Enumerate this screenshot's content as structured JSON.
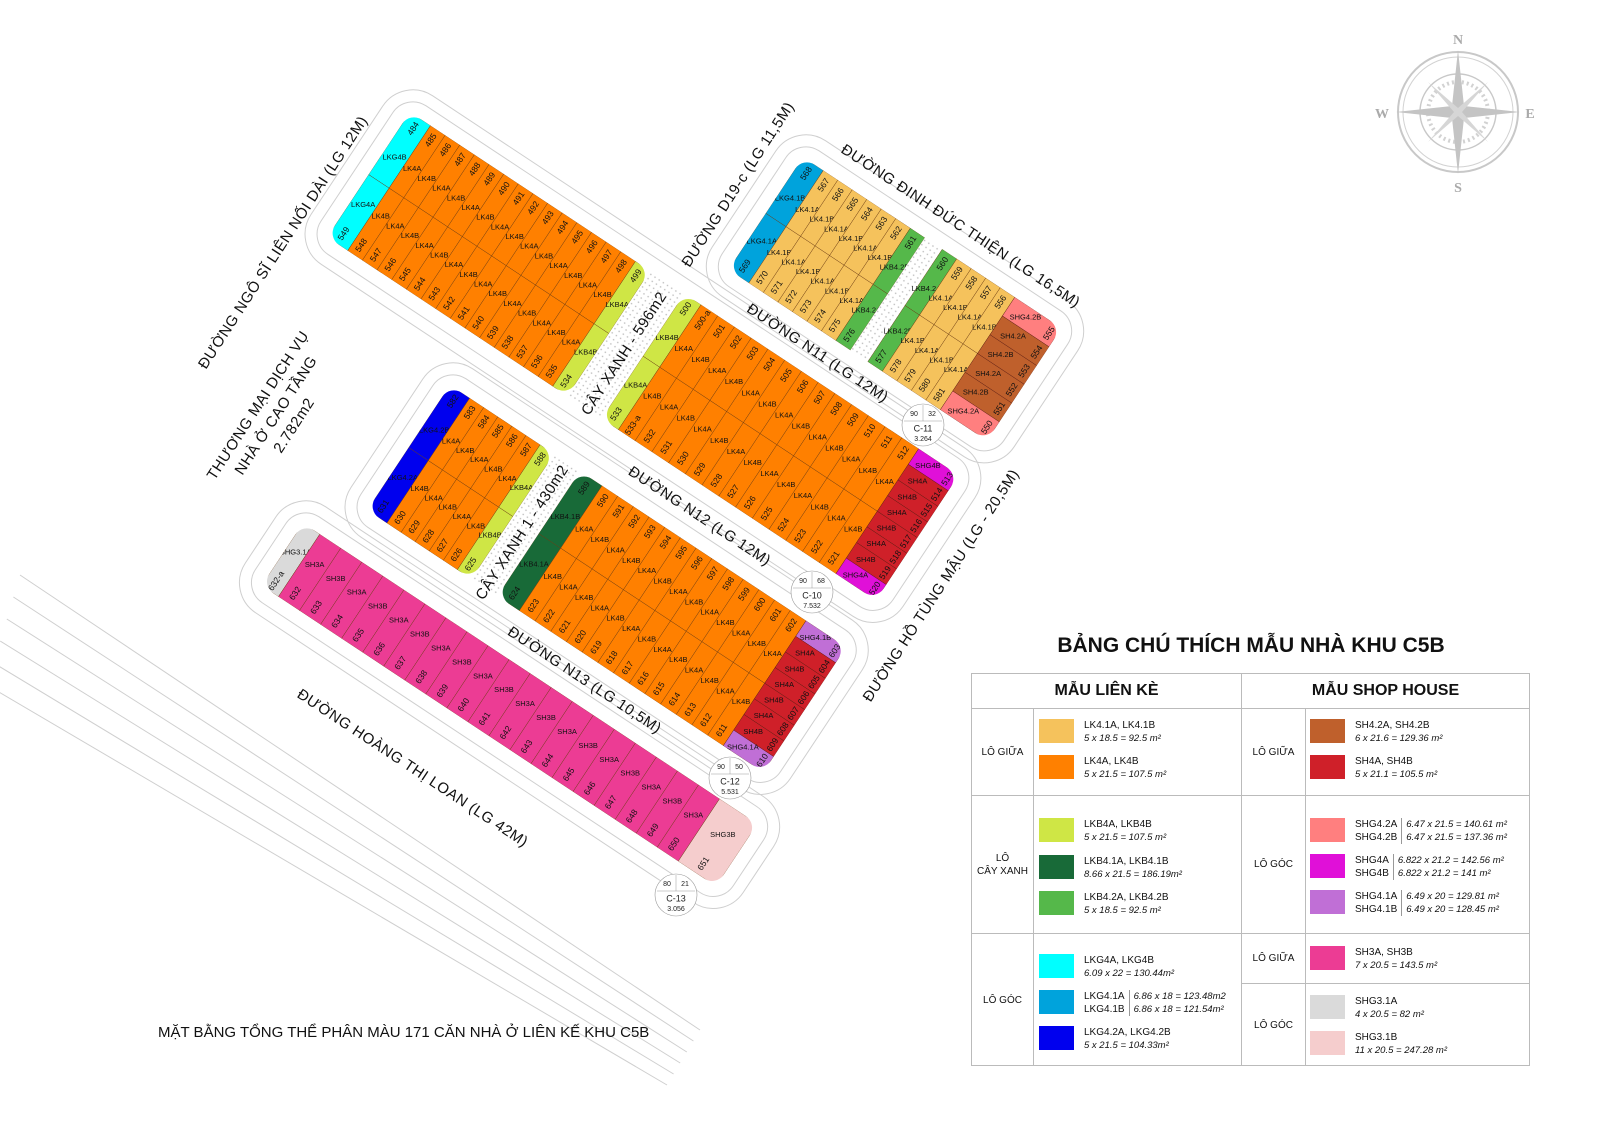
{
  "map": {
    "streets": {
      "ngo_si_lien": "ĐƯỜNG NGÔ SĨ LIÊN NỐI DÀI (LG 12M)",
      "d19c": "ĐƯỜNG D19-c (LG 11,5M)",
      "dinh_duc_thien": "ĐƯỜNG ĐINH ĐỨC THIỆN (LG 16,5M)",
      "n11": "ĐƯỜNG N11 (LG 12M)",
      "n12": "ĐƯỜNG N12 (LG 12M)",
      "n13": "ĐƯỜNG N13 (LG 10,5M)",
      "ho_tung_mau": "ĐƯỜNG HỒ TÙNG MẬU (LG - 20,5M)",
      "hoang_thi_loan": "ĐƯỜNG  HOÀNG THỊ LOAN (LG 42M)"
    },
    "areas": {
      "commercial_line1": "THƯƠNG MẠI DỊCH VỤ",
      "commercial_line2": "NHÀ Ở CAO TẦNG",
      "commercial_line3": "2.782m2",
      "green_1": "CÂY XANH - 596m2",
      "green_2": "CÂY XANH 1 - 430m2"
    },
    "compass": {
      "n": "N",
      "s": "S",
      "e": "E",
      "w": "W"
    },
    "caption": "MẶT BẰNG TỔNG THỂ PHÂN MÀU 171 CĂN NHÀ Ở LIÊN KẾ KHU C5B",
    "markers": [
      {
        "id": "C-10",
        "a": "90",
        "b": "68",
        "area": "7.532"
      },
      {
        "id": "C-11",
        "a": "90",
        "b": "32",
        "area": "3.264"
      },
      {
        "id": "C-12",
        "a": "90",
        "b": "50",
        "area": "5.531"
      },
      {
        "id": "C-13",
        "a": "80",
        "b": "21",
        "area": "3.056"
      }
    ],
    "blocks": {
      "A": {
        "top": [
          [
            "484",
            "LKG4B"
          ],
          [
            "485",
            "LK4A"
          ],
          [
            "486",
            "LK4B"
          ],
          [
            "487",
            "LK4A"
          ],
          [
            "488",
            "LK4B"
          ],
          [
            "489",
            "LK4A"
          ],
          [
            "490",
            "LK4B"
          ],
          [
            "491",
            "LK4A"
          ],
          [
            "492",
            "LK4B"
          ],
          [
            "493",
            "LK4A"
          ],
          [
            "494",
            "LK4B"
          ],
          [
            "495",
            "LK4A"
          ],
          [
            "496",
            "LK4B"
          ],
          [
            "497",
            "LK4A"
          ],
          [
            "498",
            "LK4B"
          ],
          [
            "499",
            "LKB4A"
          ]
        ],
        "bottom": [
          [
            "549",
            "LKG4A"
          ],
          [
            "548",
            "LK4B"
          ],
          [
            "547",
            "LK4A"
          ],
          [
            "546",
            "LK4B"
          ],
          [
            "545",
            "LK4A"
          ],
          [
            "544",
            "LK4B"
          ],
          [
            "543",
            "LK4A"
          ],
          [
            "542",
            "LK4B"
          ],
          [
            "541",
            "LK4A"
          ],
          [
            "540",
            "LK4B"
          ],
          [
            "539",
            "LK4A"
          ],
          [
            "538",
            "LK4B"
          ],
          [
            "537",
            "LK4A"
          ],
          [
            "536",
            "LK4B"
          ],
          [
            "535",
            "LK4A"
          ],
          [
            "534",
            "LKB4B"
          ]
        ],
        "shop": []
      },
      "C": {
        "top": [
          [
            "500",
            "LKB4B"
          ],
          [
            "500-a",
            "LK4A"
          ],
          [
            "501",
            "LK4B"
          ],
          [
            "502",
            "LK4A"
          ],
          [
            "503",
            "LK4B"
          ],
          [
            "504",
            "LK4A"
          ],
          [
            "505",
            "LK4B"
          ],
          [
            "506",
            "LK4A"
          ],
          [
            "507",
            "LK4B"
          ],
          [
            "508",
            "LK4A"
          ],
          [
            "509",
            "LK4B"
          ],
          [
            "510",
            "LK4A"
          ],
          [
            "511",
            "LK4B"
          ],
          [
            "512",
            "LK4A"
          ]
        ],
        "bottom": [
          [
            "533",
            "LKB4A"
          ],
          [
            "533-a",
            "LK4B"
          ],
          [
            "532",
            "LK4A"
          ],
          [
            "531",
            "LK4B"
          ],
          [
            "530",
            "LK4A"
          ],
          [
            "529",
            "LK4B"
          ],
          [
            "528",
            "LK4A"
          ],
          [
            "527",
            "LK4B"
          ],
          [
            "526",
            "LK4A"
          ],
          [
            "525",
            "LK4B"
          ],
          [
            "524",
            "LK4A"
          ],
          [
            "523",
            "LK4B"
          ],
          [
            "522",
            "LK4A"
          ],
          [
            "521",
            "LK4B"
          ]
        ],
        "shop": [
          [
            "513",
            "SHG4B"
          ],
          [
            "514",
            "SH4A"
          ],
          [
            "515",
            "SH4B"
          ],
          [
            "516",
            "SH4A"
          ],
          [
            "517",
            "SH4B"
          ],
          [
            "518",
            "SH4A"
          ],
          [
            "519",
            "SH4B"
          ],
          [
            "520",
            "SHG4A"
          ]
        ]
      },
      "B": {
        "top": [
          [
            "568",
            "LKG4.1B"
          ],
          [
            "567",
            "LK4.1A"
          ],
          [
            "566",
            "LK4.1B"
          ],
          [
            "565",
            "LK4.1A"
          ],
          [
            "564",
            "LK4.1B"
          ],
          [
            "563",
            "LK4.1A"
          ],
          [
            "562",
            "LK4.1B"
          ],
          [
            "561",
            "LKB4.2B"
          ],
          [
            "",
            "gap"
          ],
          [
            "560",
            "LKB4.2A"
          ],
          [
            "559",
            "LK4.1A"
          ],
          [
            "558",
            "LK4.1B"
          ],
          [
            "557",
            "LK4.1A"
          ],
          [
            "556",
            "LK4.1B"
          ]
        ],
        "bottom": [
          [
            "569",
            "LKG4.1A"
          ],
          [
            "570",
            "LK4.1B"
          ],
          [
            "571",
            "LK4.1A"
          ],
          [
            "572",
            "LK4.1B"
          ],
          [
            "573",
            "LK4.1A"
          ],
          [
            "574",
            "LK4.1B"
          ],
          [
            "575",
            "LK4.1A"
          ],
          [
            "576",
            "LKB4.2A"
          ],
          [
            "",
            "gap"
          ],
          [
            "577",
            "LKB4.2B"
          ],
          [
            "578",
            "LK4.1B"
          ],
          [
            "579",
            "LK4.1A"
          ],
          [
            "580",
            "LK4.1B"
          ],
          [
            "581",
            "LK4.1A"
          ]
        ],
        "shop": [
          [
            "555",
            "SHG4.2B"
          ],
          [
            "554",
            "SH4.2A"
          ],
          [
            "553",
            "SH4.2B"
          ],
          [
            "552",
            "SH4.2A"
          ],
          [
            "551",
            "SH4.2B"
          ],
          [
            "550",
            "SHG4.2A"
          ]
        ]
      },
      "D": {
        "top": [
          [
            "582",
            "LKG4.2B"
          ],
          [
            "583",
            "LK4A"
          ],
          [
            "584",
            "LK4B"
          ],
          [
            "585",
            "LK4A"
          ],
          [
            "586",
            "LK4B"
          ],
          [
            "587",
            "LK4A"
          ],
          [
            "588",
            "LKB4A"
          ]
        ],
        "bottom": [
          [
            "631",
            "LKG4.2A"
          ],
          [
            "630",
            "LK4B"
          ],
          [
            "629",
            "LK4A"
          ],
          [
            "628",
            "LK4B"
          ],
          [
            "627",
            "LK4A"
          ],
          [
            "626",
            "LK4B"
          ],
          [
            "625",
            "LKB4B"
          ]
        ],
        "shop": []
      },
      "E": {
        "top": [
          [
            "589",
            "LKB4.1B"
          ],
          [
            "590",
            "LK4A"
          ],
          [
            "591",
            "LK4B"
          ],
          [
            "592",
            "LK4A"
          ],
          [
            "593",
            "LK4B"
          ],
          [
            "594",
            "LK4A"
          ],
          [
            "595",
            "LK4B"
          ],
          [
            "596",
            "LK4A"
          ],
          [
            "597",
            "LK4B"
          ],
          [
            "598",
            "LK4A"
          ],
          [
            "599",
            "LK4B"
          ],
          [
            "600",
            "LK4A"
          ],
          [
            "601",
            "LK4B"
          ],
          [
            "602",
            "LK4A"
          ]
        ],
        "bottom": [
          [
            "624",
            "LKB4.1A"
          ],
          [
            "623",
            "LK4B"
          ],
          [
            "622",
            "LK4A"
          ],
          [
            "621",
            "LK4B"
          ],
          [
            "620",
            "LK4A"
          ],
          [
            "619",
            "LK4B"
          ],
          [
            "618",
            "LK4A"
          ],
          [
            "617",
            "LK4B"
          ],
          [
            "616",
            "LK4A"
          ],
          [
            "615",
            "LK4B"
          ],
          [
            "614",
            "LK4A"
          ],
          [
            "613",
            "LK4B"
          ],
          [
            "612",
            "LK4A"
          ],
          [
            "611",
            "LK4B"
          ]
        ],
        "shop": [
          [
            "603",
            "SHG4.1B"
          ],
          [
            "604",
            "SH4A"
          ],
          [
            "605",
            "SH4B"
          ],
          [
            "606",
            "SH4A"
          ],
          [
            "607",
            "SH4B"
          ],
          [
            "608",
            "SH4A"
          ],
          [
            "609",
            "SH4B"
          ],
          [
            "610",
            "SHG4.1A"
          ]
        ]
      },
      "F": {
        "single": [
          [
            "632-a",
            "SHG3.1A"
          ],
          [
            "632",
            "SH3A"
          ],
          [
            "633",
            "SH3B"
          ],
          [
            "634",
            "SH3A"
          ],
          [
            "635",
            "SH3B"
          ],
          [
            "636",
            "SH3A"
          ],
          [
            "637",
            "SH3B"
          ],
          [
            "638",
            "SH3A"
          ],
          [
            "639",
            "SH3B"
          ],
          [
            "640",
            "SH3A"
          ],
          [
            "641",
            "SH3B"
          ],
          [
            "642",
            "SH3A"
          ],
          [
            "643",
            "SH3B"
          ],
          [
            "644",
            "SH3A"
          ],
          [
            "645",
            "SH3B"
          ],
          [
            "646",
            "SH3A"
          ],
          [
            "647",
            "SH3B"
          ],
          [
            "648",
            "SH3A"
          ],
          [
            "649",
            "SH3B"
          ],
          [
            "650",
            "SH3A"
          ],
          [
            "651",
            "SHG3B"
          ]
        ]
      }
    }
  },
  "colors": {
    "LK4.1A": "#f5c25c",
    "LK4.1B": "#f5c25c",
    "LK4A": "#ff8000",
    "LK4B": "#ff8000",
    "LKB4A": "#cfe645",
    "LKB4B": "#cfe645",
    "LKB4.1A": "#186a38",
    "LKB4.1B": "#186a38",
    "LKB4.2A": "#55b84a",
    "LKB4.2B": "#55b84a",
    "LKG4A": "#00ffff",
    "LKG4B": "#00ffff",
    "LKG4.1A": "#00a3dc",
    "LKG4.1B": "#00a3dc",
    "LKG4.2A": "#0000ee",
    "LKG4.2B": "#0000ee",
    "SH4.2A": "#bf602c",
    "SH4.2B": "#bf602c",
    "SH4A": "#cf2029",
    "SH4B": "#cf2029",
    "SHG4.2A": "#ff7f7f",
    "SHG4.2B": "#ff7f7f",
    "SHG4A": "#e010d8",
    "SHG4B": "#e010d8",
    "SHG4.1A": "#c06fd6",
    "SHG4.1B": "#c06fd6",
    "SH3A": "#ec3c94",
    "SH3B": "#ec3c94",
    "SHG3.1A": "#dadada",
    "SHG3B": "#f5cdcd",
    "SHG3.1B": "#f5cdcd"
  },
  "legend": {
    "title": "BẢNG CHÚ THÍCH MẪU NHÀ KHU C5B",
    "left_header": "MẪU LIÊN KÈ",
    "right_header": "MẪU SHOP HOUSE",
    "left": {
      "mid_label": "LÔ GIỮA",
      "green_label_1": "LÔ",
      "green_label_2": "CÂY XANH",
      "corner_label": "LÔ GÓC",
      "lk41": {
        "name": "LK4.1A, LK4.1B",
        "dim": "5 x 18.5 = 92.5 m²",
        "color": "#f5c25c"
      },
      "lk4": {
        "name": "LK4A, LK4B",
        "dim": "5 x 21.5 = 107.5 m²",
        "color": "#ff8000"
      },
      "lkb4": {
        "name": "LKB4A, LKB4B",
        "dim": "5 x 21.5 = 107.5 m²",
        "color": "#cfe645"
      },
      "lkb41": {
        "name": "LKB4.1A, LKB4.1B",
        "dim": "8.66 x 21.5 = 186.19m²",
        "color": "#186a38"
      },
      "lkb42": {
        "name": "LKB4.2A, LKB4.2B",
        "dim": "5 x 18.5 = 92.5 m²",
        "color": "#55b84a"
      },
      "lkg4": {
        "name": "LKG4A, LKG4B",
        "dim": "6.09 x 22 = 130.44m²",
        "color": "#00ffff"
      },
      "lkg41": {
        "name_a": "LKG4.1A",
        "name_b": "LKG4.1B",
        "dim_a": "6.86 x 18 = 123.48m2",
        "dim_b": "6.86 x 18 = 121.54m²",
        "color": "#00a3dc"
      },
      "lkg42": {
        "name": "LKG4.2A, LKG4.2B",
        "dim": "5 x 21.5 = 104.33m²",
        "color": "#0000ee"
      }
    },
    "right": {
      "mid_label": "LÔ GIỮA",
      "corner_label": "LÔ GÓC",
      "mid_label_2": "LÔ GIỮA",
      "corner_label_2": "LÔ GÓC",
      "sh42": {
        "name": "SH4.2A, SH4.2B",
        "dim": "6 x 21.6 = 129.36 m²",
        "color": "#bf602c"
      },
      "sh4": {
        "name": "SH4A, SH4B",
        "dim": "5 x 21.1 = 105.5 m²",
        "color": "#cf2029"
      },
      "shg42": {
        "name_a": "SHG4.2A",
        "name_b": "SHG4.2B",
        "dim_a": "6.47 x 21.5 = 140.61 m²",
        "dim_b": "6.47 x 21.5 = 137.36 m²",
        "color": "#ff7f7f"
      },
      "shg4": {
        "name_a": "SHG4A",
        "name_b": "SHG4B",
        "dim_a": "6.822 x 21.2 = 142.56 m²",
        "dim_b": "6.822 x 21.2 = 141 m²",
        "color": "#e010d8"
      },
      "shg41": {
        "name_a": "SHG4.1A",
        "name_b": "SHG4.1B",
        "dim_a": "6.49 x 20 = 129.81 m²",
        "dim_b": "6.49 x 20 = 128.45 m²",
        "color": "#c06fd6"
      },
      "sh3": {
        "name": "SH3A, SH3B",
        "dim": "7 x 20.5 = 143.5 m²",
        "color": "#ec3c94"
      },
      "shg31a": {
        "name": "SHG3.1A",
        "dim": "4 x 20.5 = 82 m²",
        "color": "#dadada"
      },
      "shg31b": {
        "name": "SHG3.1B",
        "dim": "11 x 20.5 = 247.28 m²",
        "color": "#f5cdcd"
      }
    }
  }
}
